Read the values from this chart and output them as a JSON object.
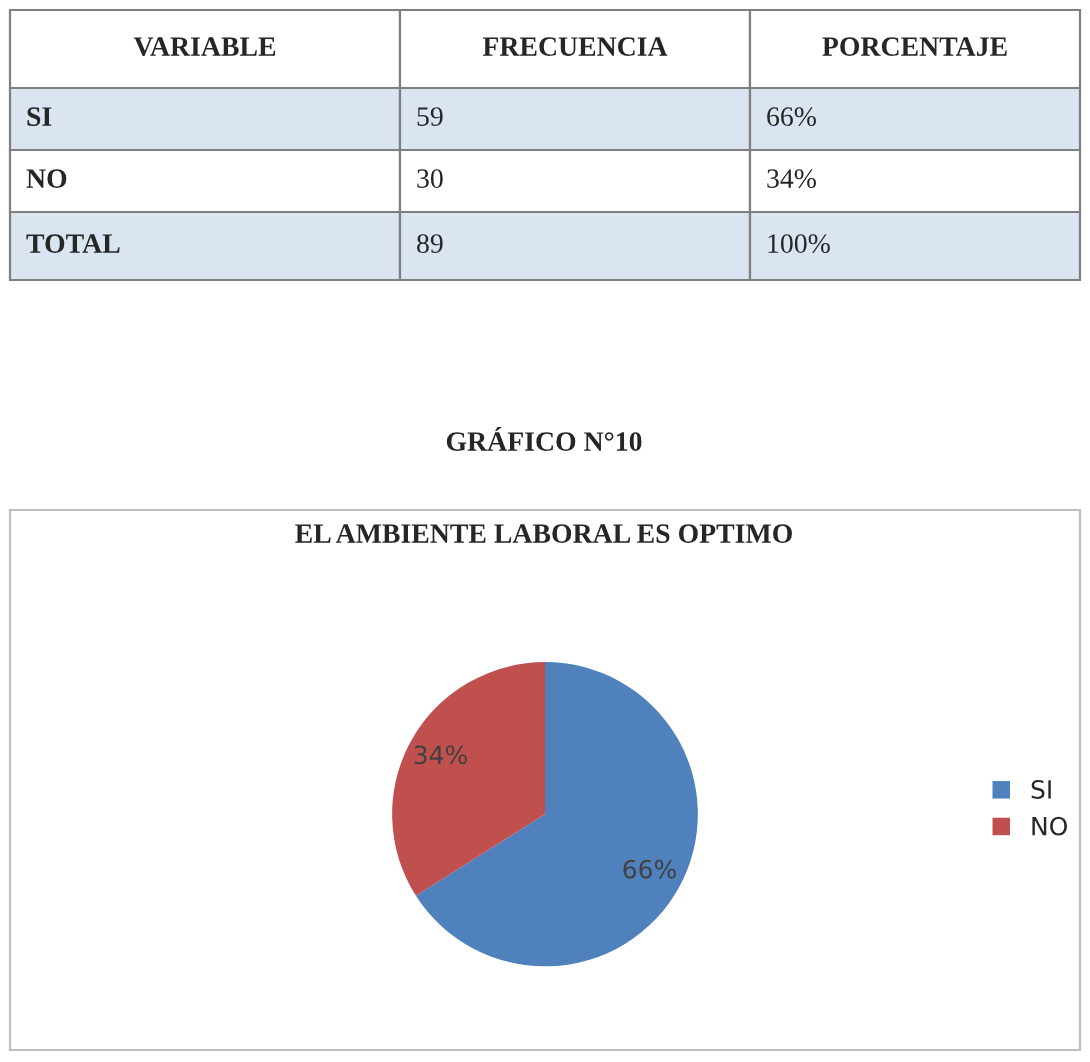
{
  "chart_data": [
    {
      "type": "other",
      "categories": [
        "VARIABLE",
        "FRECUENCIA",
        "PORCENTAJE"
      ],
      "annotations": [
        "SI",
        "59",
        "66%",
        "NO",
        "30",
        "34%",
        "TOTAL",
        "89",
        "100%"
      ]
    },
    {
      "type": "pie",
      "title": "EL AMBIENTE LABORAL ES OPTIMO",
      "annotations": [
        "GRÁFICO N°10"
      ],
      "categories": [
        "SI",
        "NO"
      ],
      "values": [
        66,
        34
      ],
      "value_labels": [
        "66%",
        "34%"
      ],
      "colors": [
        "#4f81bd",
        "#c0504d"
      ],
      "legend": "right"
    }
  ]
}
